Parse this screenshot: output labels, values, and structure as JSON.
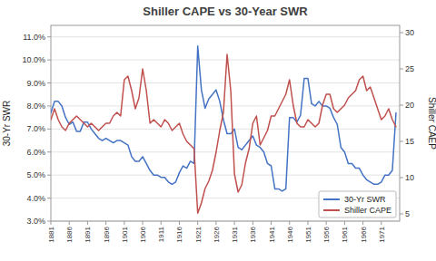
{
  "chart_data": {
    "type": "line",
    "title": "Shiller CAPE vs 30-Year SWR",
    "ylabel": "30-Yr SWR",
    "y2label": "Shiller CAEP",
    "x": [
      1881,
      1882,
      1883,
      1884,
      1885,
      1886,
      1887,
      1888,
      1889,
      1890,
      1891,
      1892,
      1893,
      1894,
      1895,
      1896,
      1897,
      1898,
      1899,
      1900,
      1901,
      1902,
      1903,
      1904,
      1905,
      1906,
      1907,
      1908,
      1909,
      1910,
      1911,
      1912,
      1913,
      1914,
      1915,
      1916,
      1917,
      1918,
      1919,
      1920,
      1921,
      1922,
      1923,
      1924,
      1925,
      1926,
      1927,
      1928,
      1929,
      1930,
      1931,
      1932,
      1933,
      1934,
      1935,
      1936,
      1937,
      1938,
      1939,
      1940,
      1941,
      1942,
      1943,
      1944,
      1945,
      1946,
      1947,
      1948,
      1949,
      1950,
      1951,
      1952,
      1953,
      1954,
      1955,
      1956,
      1957,
      1958,
      1959,
      1960,
      1961,
      1962,
      1963,
      1964,
      1965,
      1966,
      1967,
      1968,
      1969,
      1970,
      1971,
      1972,
      1973,
      1974,
      1975
    ],
    "series": [
      {
        "name": "30-Yr SWR",
        "color": "#4472C4",
        "values": [
          0.077,
          0.082,
          0.082,
          0.08,
          0.075,
          0.072,
          0.073,
          0.069,
          0.069,
          0.073,
          0.073,
          0.07,
          0.068,
          0.066,
          0.065,
          0.066,
          0.065,
          0.064,
          0.065,
          0.065,
          0.064,
          0.063,
          0.058,
          0.056,
          0.056,
          0.058,
          0.055,
          0.052,
          0.05,
          0.05,
          0.049,
          0.049,
          0.047,
          0.046,
          0.047,
          0.051,
          0.054,
          0.053,
          0.056,
          0.055,
          0.106,
          0.087,
          0.079,
          0.083,
          0.085,
          0.087,
          0.082,
          0.074,
          0.068,
          0.068,
          0.07,
          0.062,
          0.061,
          0.063,
          0.065,
          0.067,
          0.063,
          0.062,
          0.06,
          0.055,
          0.054,
          0.044,
          0.044,
          0.043,
          0.044,
          0.075,
          0.075,
          0.073,
          0.076,
          0.092,
          0.092,
          0.081,
          0.08,
          0.082,
          0.08,
          0.08,
          0.079,
          0.075,
          0.072,
          0.062,
          0.06,
          0.055,
          0.055,
          0.053,
          0.053,
          0.05,
          0.048,
          0.047,
          0.046,
          0.046,
          0.047,
          0.05,
          0.05,
          0.052,
          0.077
        ]
      },
      {
        "name": "Shiller CAPE",
        "color": "#C0504D",
        "axis": "y2",
        "values": [
          18.0,
          19.5,
          18.0,
          17.0,
          16.5,
          17.5,
          18.0,
          18.5,
          18.0,
          17.5,
          17.0,
          17.5,
          17.0,
          16.5,
          17.0,
          17.5,
          17.5,
          18.5,
          19.0,
          18.5,
          23.5,
          24.0,
          22.0,
          19.5,
          21.0,
          25.0,
          22.0,
          17.5,
          18.0,
          17.5,
          17.0,
          18.0,
          17.5,
          16.5,
          17.0,
          17.5,
          16.0,
          15.0,
          14.5,
          14.0,
          5.1,
          6.5,
          8.5,
          9.5,
          11.0,
          13.5,
          16.5,
          19.0,
          27.0,
          22.0,
          10.5,
          8.0,
          9.0,
          12.0,
          14.0,
          17.5,
          18.5,
          14.5,
          15.5,
          16.5,
          18.5,
          18.5,
          19.5,
          20.5,
          21.5,
          23.5,
          20.0,
          17.5,
          17.0,
          17.0,
          18.0,
          17.5,
          17.0,
          17.5,
          20.0,
          21.5,
          21.5,
          19.5,
          19.0,
          19.5,
          20.0,
          21.0,
          21.5,
          22.0,
          23.5,
          24.0,
          22.0,
          22.5,
          21.0,
          19.5,
          18.0,
          18.5,
          19.5,
          18.0,
          17.0
        ]
      }
    ],
    "xlim": [
      1881,
      1976
    ],
    "xticks": [
      1881,
      1886,
      1891,
      1896,
      1901,
      1906,
      1911,
      1916,
      1921,
      1926,
      1931,
      1936,
      1941,
      1946,
      1951,
      1956,
      1961,
      1966,
      1971
    ],
    "ylim": [
      0.03,
      0.115
    ],
    "yticks": [
      {
        "value": 0.03,
        "label": "3.0%"
      },
      {
        "value": 0.04,
        "label": "4.0%"
      },
      {
        "value": 0.05,
        "label": "5.0%"
      },
      {
        "value": 0.06,
        "label": "6.0%"
      },
      {
        "value": 0.07,
        "label": "7.0%"
      },
      {
        "value": 0.08,
        "label": "8.0%"
      },
      {
        "value": 0.09,
        "label": "9.0%"
      },
      {
        "value": 0.1,
        "label": "10.0%"
      },
      {
        "value": 0.11,
        "label": "11.0%"
      }
    ],
    "y2lim": [
      4,
      31
    ],
    "y2ticks": [
      5,
      10,
      15,
      20,
      25,
      30
    ],
    "grid": true,
    "legend": "lower right"
  }
}
